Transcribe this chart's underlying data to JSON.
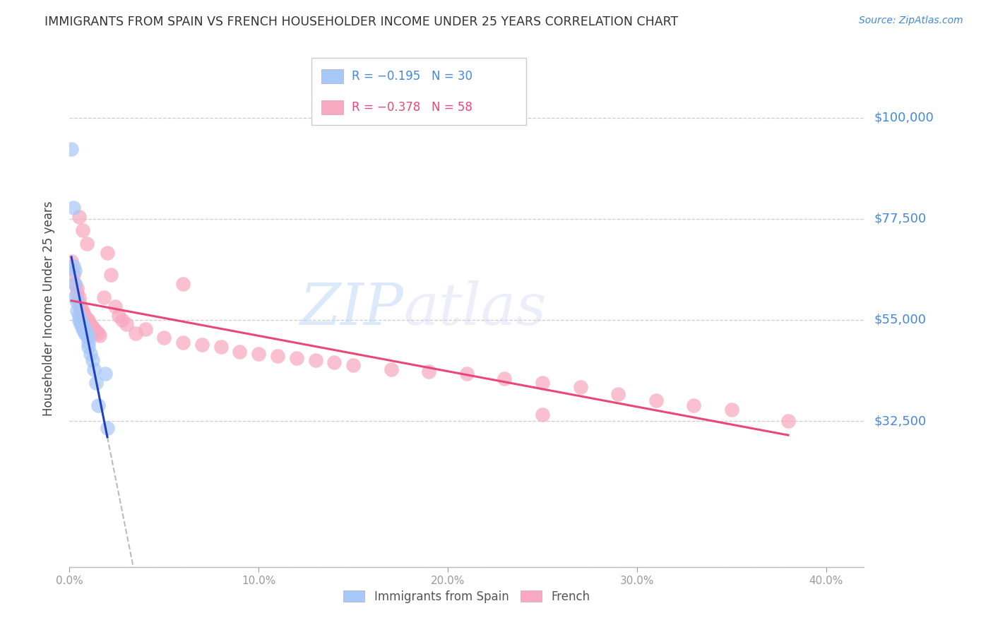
{
  "title": "IMMIGRANTS FROM SPAIN VS FRENCH HOUSEHOLDER INCOME UNDER 25 YEARS CORRELATION CHART",
  "source": "Source: ZipAtlas.com",
  "ylabel": "Householder Income Under 25 years",
  "xlim": [
    0.0,
    0.42
  ],
  "ylim": [
    0,
    115000
  ],
  "yticks": [
    0,
    32500,
    55000,
    77500,
    100000
  ],
  "ytick_labels": [
    "",
    "$32,500",
    "$55,000",
    "$77,500",
    "$100,000"
  ],
  "xticks": [
    0.0,
    0.1,
    0.2,
    0.3,
    0.4
  ],
  "xtick_labels": [
    "0.0%",
    "10.0%",
    "20.0%",
    "30.0%",
    "40.0%"
  ],
  "blue_color": "#A8C8F8",
  "pink_color": "#F8A8C0",
  "blue_line_color": "#2040C0",
  "pink_line_color": "#E84878",
  "dashed_line_color": "#BBBBBB",
  "grid_color": "#CCCCCC",
  "title_color": "#333333",
  "axis_label_color": "#4488DD",
  "legend_label1": "Immigrants from Spain",
  "legend_label2": "French",
  "spain_x": [
    0.001,
    0.002,
    0.002,
    0.003,
    0.003,
    0.003,
    0.004,
    0.004,
    0.005,
    0.005,
    0.006,
    0.006,
    0.007,
    0.007,
    0.007,
    0.008,
    0.008,
    0.008,
    0.009,
    0.009,
    0.01,
    0.01,
    0.01,
    0.011,
    0.012,
    0.013,
    0.014,
    0.015,
    0.019,
    0.02
  ],
  "spain_y": [
    93000,
    80000,
    67000,
    66000,
    63000,
    60000,
    59000,
    57000,
    56000,
    55000,
    55000,
    54000,
    54000,
    53500,
    53000,
    53000,
    52500,
    52000,
    52000,
    51500,
    51000,
    50000,
    49000,
    47500,
    46000,
    44000,
    41000,
    36000,
    43000,
    31000
  ],
  "french_x": [
    0.001,
    0.002,
    0.003,
    0.004,
    0.004,
    0.005,
    0.005,
    0.006,
    0.006,
    0.007,
    0.007,
    0.008,
    0.008,
    0.009,
    0.01,
    0.01,
    0.011,
    0.012,
    0.013,
    0.014,
    0.015,
    0.016,
    0.018,
    0.02,
    0.022,
    0.024,
    0.026,
    0.028,
    0.03,
    0.035,
    0.04,
    0.05,
    0.06,
    0.07,
    0.08,
    0.09,
    0.1,
    0.11,
    0.12,
    0.13,
    0.14,
    0.15,
    0.17,
    0.19,
    0.21,
    0.23,
    0.25,
    0.27,
    0.29,
    0.31,
    0.33,
    0.35,
    0.005,
    0.007,
    0.009,
    0.06,
    0.25,
    0.38
  ],
  "french_y": [
    68000,
    65000,
    63000,
    62000,
    61000,
    60000,
    59000,
    58000,
    57500,
    57000,
    56500,
    56000,
    55500,
    55000,
    55000,
    54500,
    54000,
    53500,
    53000,
    52500,
    52000,
    51500,
    60000,
    70000,
    65000,
    58000,
    56000,
    55000,
    54000,
    52000,
    53000,
    51000,
    50000,
    49500,
    49000,
    48000,
    47500,
    47000,
    46500,
    46000,
    45500,
    45000,
    44000,
    43500,
    43000,
    42000,
    41000,
    40000,
    38500,
    37000,
    36000,
    35000,
    78000,
    75000,
    72000,
    63000,
    34000,
    32500
  ]
}
